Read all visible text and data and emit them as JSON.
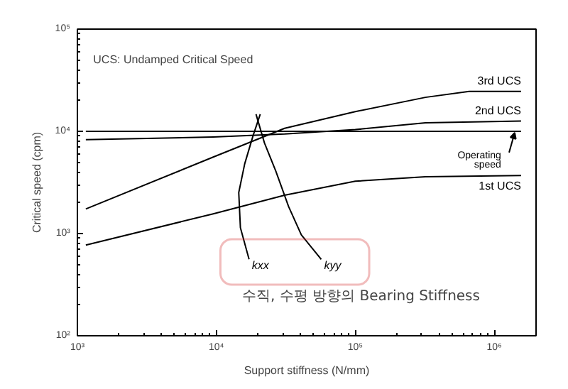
{
  "chart_data": {
    "type": "line",
    "log": "xy",
    "xlabel": "Support stiffness (N/mm)",
    "ylabel": "Critical speed (cpm)",
    "xlim": [
      1000,
      2000000
    ],
    "ylim": [
      100,
      100000
    ],
    "xticks": [
      {
        "value": 1000,
        "label": "10³"
      },
      {
        "value": 10000,
        "label": "10⁴"
      },
      {
        "value": 100000,
        "label": "10⁵"
      },
      {
        "value": 1000000,
        "label": "10⁶"
      }
    ],
    "yticks": [
      {
        "value": 100,
        "label": "10²"
      },
      {
        "value": 1000,
        "label": "10³"
      },
      {
        "value": 10000,
        "label": "10⁴"
      },
      {
        "value": 100000,
        "label": "10⁵"
      }
    ],
    "grid": false,
    "marker": "none",
    "line_style": "solid",
    "annotations": [
      "UCS: Undamped Critical Speed",
      "수직, 수평 방향의 Bearing Stiffness"
    ],
    "series": [
      {
        "name": "3rd UCS",
        "color": "#000000",
        "x": [
          1150,
          9500,
          31000,
          100000,
          320000,
          660000,
          1560000
        ],
        "values": [
          1740,
          5600,
          10700,
          15600,
          21500,
          24600,
          24600
        ]
      },
      {
        "name": "2nd UCS",
        "color": "#000000",
        "x": [
          1150,
          9500,
          31000,
          100000,
          320000,
          1560000
        ],
        "values": [
          8300,
          8800,
          9400,
          10400,
          12100,
          12600
        ]
      },
      {
        "name": "Operating speed",
        "color": "#000000",
        "x": [
          1150,
          1560000
        ],
        "values": [
          10000,
          10000
        ]
      },
      {
        "name": "1st UCS",
        "color": "#000000",
        "x": [
          1150,
          9500,
          31000,
          100000,
          320000,
          1560000
        ],
        "values": [
          770,
          1560,
          2370,
          3250,
          3600,
          3700
        ]
      },
      {
        "name": "kxx",
        "color": "#000000",
        "x": [
          20700,
          18400,
          16000,
          14500,
          14900,
          17200
        ],
        "values": [
          14700,
          9100,
          4800,
          2520,
          1140,
          560
        ]
      },
      {
        "name": "kyy",
        "color": "#000000",
        "x": [
          19300,
          22200,
          26800,
          33100,
          40900,
          56900
        ],
        "values": [
          14700,
          7700,
          4080,
          1840,
          970,
          560
        ]
      }
    ]
  }
}
